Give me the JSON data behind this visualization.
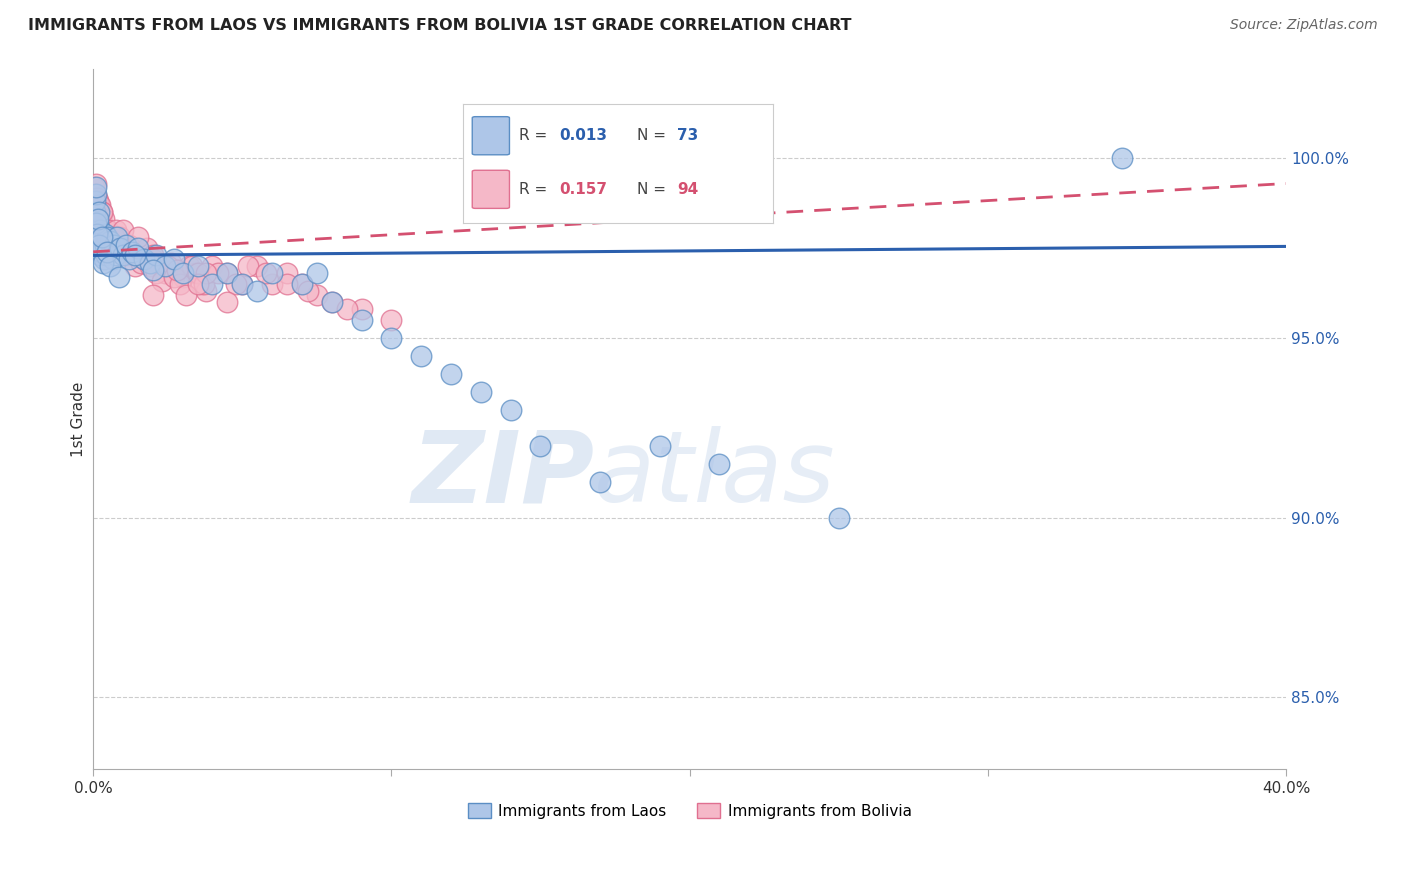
{
  "title": "IMMIGRANTS FROM LAOS VS IMMIGRANTS FROM BOLIVIA 1ST GRADE CORRELATION CHART",
  "source": "Source: ZipAtlas.com",
  "ylabel": "1st Grade",
  "xlim": [
    0.0,
    40.0
  ],
  "ylim": [
    83.0,
    102.5
  ],
  "y_ticks": [
    85.0,
    90.0,
    95.0,
    100.0
  ],
  "y_tick_labels": [
    "85.0%",
    "90.0%",
    "95.0%",
    "100.0%"
  ],
  "laos_color": "#aec6e8",
  "bolivia_color": "#f5b8c8",
  "laos_edge_color": "#5b8ec4",
  "bolivia_edge_color": "#e07090",
  "laos_R": 0.013,
  "laos_N": 73,
  "bolivia_R": 0.157,
  "bolivia_N": 94,
  "trend_laos_color": "#2b5fad",
  "trend_bolivia_color": "#d45070",
  "watermark_zip": "ZIP",
  "watermark_atlas": "atlas",
  "laos_trend_y0": 97.3,
  "laos_trend_y1": 97.55,
  "bolivia_trend_y0": 97.4,
  "bolivia_trend_y1": 99.3,
  "laos_x": [
    0.05,
    0.07,
    0.09,
    0.1,
    0.11,
    0.13,
    0.14,
    0.15,
    0.17,
    0.18,
    0.2,
    0.22,
    0.24,
    0.25,
    0.27,
    0.3,
    0.32,
    0.35,
    0.38,
    0.4,
    0.42,
    0.45,
    0.5,
    0.55,
    0.6,
    0.65,
    0.7,
    0.75,
    0.8,
    0.9,
    1.0,
    1.1,
    1.2,
    1.3,
    1.5,
    1.7,
    1.9,
    2.1,
    2.4,
    2.7,
    3.0,
    3.5,
    4.0,
    4.5,
    5.0,
    5.5,
    6.0,
    7.0,
    7.5,
    8.0,
    9.0,
    10.0,
    11.0,
    12.0,
    13.0,
    14.0,
    15.0,
    17.0,
    19.0,
    21.0,
    25.0,
    34.5,
    0.08,
    0.12,
    0.16,
    0.19,
    0.28,
    0.33,
    0.48,
    0.58,
    0.85,
    1.4,
    2.0
  ],
  "laos_y": [
    98.5,
    98.8,
    99.0,
    99.2,
    98.0,
    97.5,
    97.8,
    98.2,
    97.9,
    98.5,
    97.6,
    97.3,
    98.0,
    97.7,
    97.4,
    97.8,
    97.5,
    97.2,
    97.9,
    97.6,
    97.3,
    97.8,
    97.5,
    97.7,
    97.4,
    97.2,
    97.6,
    97.3,
    97.8,
    97.5,
    97.3,
    97.6,
    97.2,
    97.4,
    97.5,
    97.2,
    97.1,
    97.3,
    97.0,
    97.2,
    96.8,
    97.0,
    96.5,
    96.8,
    96.5,
    96.3,
    96.8,
    96.5,
    96.8,
    96.0,
    95.5,
    95.0,
    94.5,
    94.0,
    93.5,
    93.0,
    92.0,
    91.0,
    92.0,
    91.5,
    90.0,
    100.0,
    98.2,
    97.9,
    98.3,
    97.6,
    97.8,
    97.1,
    97.4,
    97.0,
    96.7,
    97.3,
    96.9
  ],
  "bolivia_x": [
    0.04,
    0.06,
    0.08,
    0.09,
    0.1,
    0.11,
    0.12,
    0.13,
    0.14,
    0.15,
    0.16,
    0.17,
    0.18,
    0.19,
    0.2,
    0.21,
    0.22,
    0.23,
    0.25,
    0.27,
    0.29,
    0.31,
    0.33,
    0.35,
    0.37,
    0.4,
    0.43,
    0.46,
    0.5,
    0.55,
    0.6,
    0.65,
    0.7,
    0.75,
    0.8,
    0.85,
    0.9,
    1.0,
    1.1,
    1.2,
    1.3,
    1.4,
    1.5,
    1.6,
    1.8,
    2.0,
    2.2,
    2.4,
    2.6,
    2.8,
    3.0,
    3.2,
    3.4,
    3.6,
    3.8,
    4.0,
    4.5,
    5.0,
    5.5,
    6.0,
    6.5,
    7.0,
    7.5,
    8.0,
    9.0,
    10.0,
    1.7,
    1.9,
    2.1,
    2.3,
    2.5,
    2.7,
    2.9,
    3.1,
    3.3,
    3.5,
    3.7,
    4.2,
    4.8,
    5.2,
    5.8,
    6.5,
    7.2,
    8.5,
    2.0,
    3.8,
    0.3,
    0.7,
    1.0,
    1.5,
    2.0,
    2.8,
    3.5,
    4.5
  ],
  "bolivia_y": [
    99.2,
    99.0,
    98.5,
    98.8,
    99.3,
    98.7,
    98.9,
    98.5,
    98.2,
    98.8,
    98.6,
    98.3,
    98.7,
    98.4,
    98.0,
    98.5,
    98.2,
    98.7,
    98.4,
    98.0,
    98.5,
    98.2,
    97.9,
    98.3,
    98.0,
    97.7,
    98.0,
    97.8,
    98.0,
    97.8,
    97.5,
    97.8,
    97.5,
    98.0,
    97.7,
    97.4,
    97.8,
    97.5,
    97.3,
    97.6,
    97.3,
    97.0,
    97.4,
    97.1,
    97.5,
    97.2,
    97.0,
    96.8,
    97.1,
    96.9,
    96.7,
    97.0,
    96.8,
    96.5,
    96.3,
    97.0,
    96.8,
    96.5,
    97.0,
    96.5,
    96.8,
    96.5,
    96.2,
    96.0,
    95.8,
    95.5,
    97.2,
    97.0,
    96.8,
    96.6,
    97.0,
    96.7,
    96.5,
    96.2,
    97.0,
    96.8,
    96.5,
    96.8,
    96.5,
    97.0,
    96.8,
    96.5,
    96.3,
    95.8,
    96.2,
    96.8,
    98.5,
    97.8,
    98.0,
    97.8,
    97.3,
    96.9,
    96.5,
    96.0
  ]
}
